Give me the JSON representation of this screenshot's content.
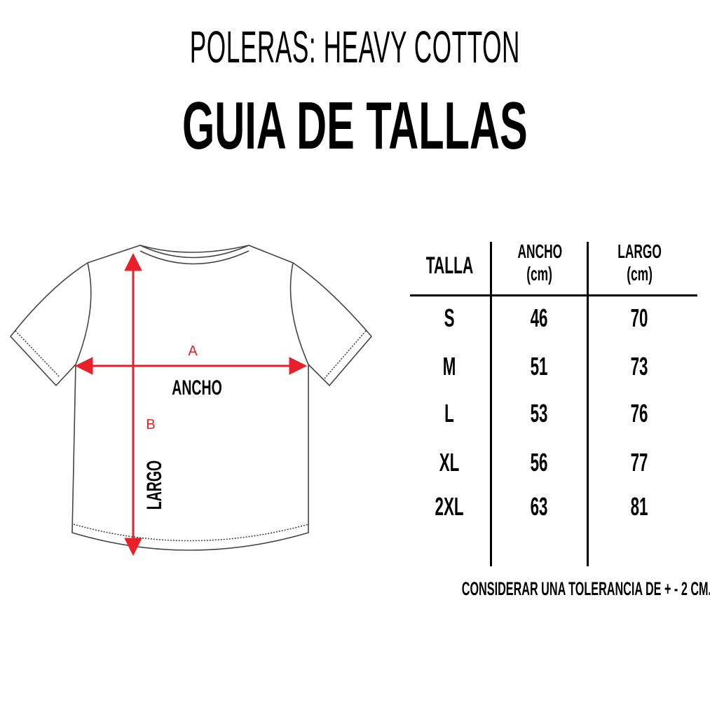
{
  "header": {
    "subtitle": "POLERAS: HEAVY COTTON",
    "title": "GUIA DE TALLAS"
  },
  "diagram": {
    "label_a": "A",
    "label_b": "B",
    "ancho": "ANCHO",
    "largo": "LARGO",
    "arrow_color": "#e8202a"
  },
  "table": {
    "columns": [
      {
        "label": "TALLA"
      },
      {
        "label": "ANCHO",
        "unit": "(cm)"
      },
      {
        "label": "LARGO",
        "unit": "(cm)"
      }
    ],
    "rows": [
      {
        "talla": "S",
        "ancho": "46",
        "largo": "70"
      },
      {
        "talla": "M",
        "ancho": "51",
        "largo": "73"
      },
      {
        "talla": "L",
        "ancho": "53",
        "largo": "76"
      },
      {
        "talla": "XL",
        "ancho": "56",
        "largo": "77"
      },
      {
        "talla": "2XL",
        "ancho": "63",
        "largo": "81"
      }
    ]
  },
  "note": "CONSIDERAR UNA TOLERANCIA DE + - 2 CM."
}
